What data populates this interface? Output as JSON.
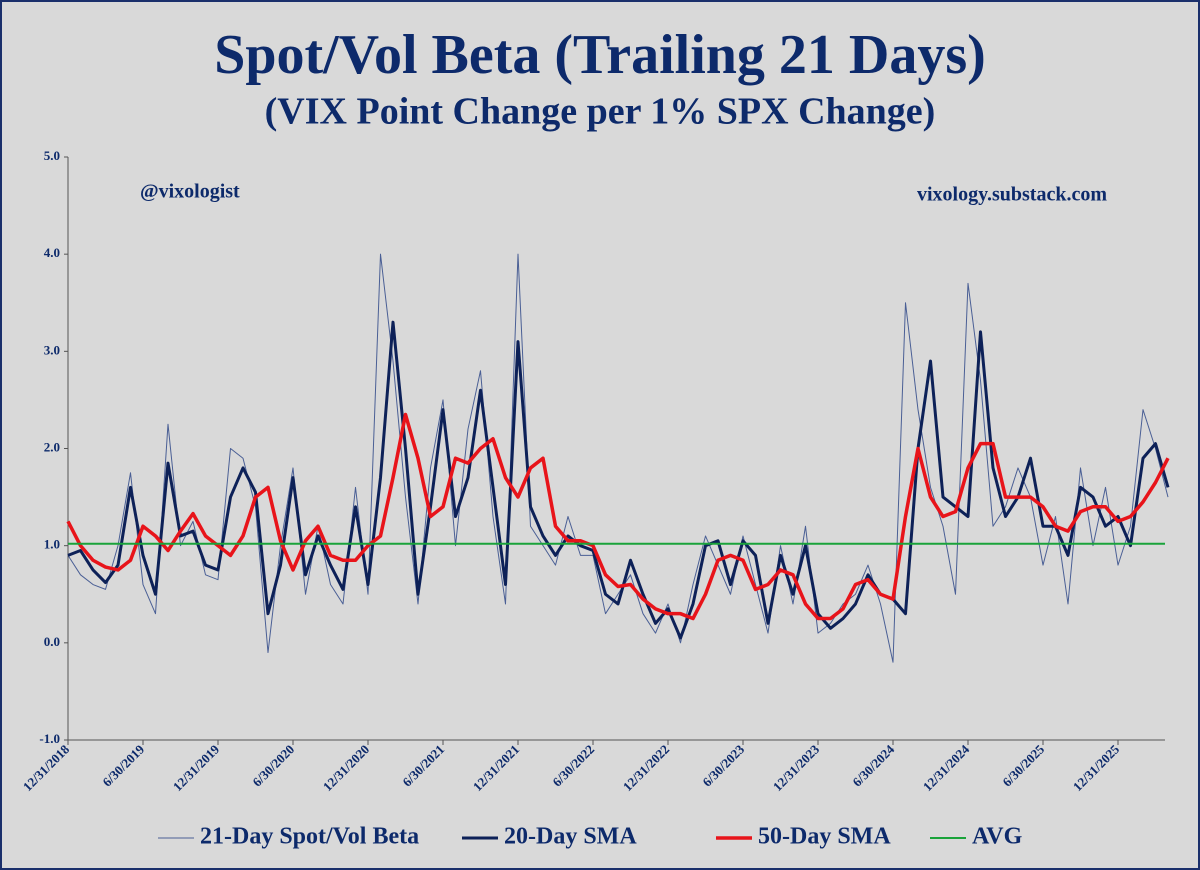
{
  "chart_data": {
    "type": "line",
    "title": "Spot/Vol Beta (Trailing 21 Days)",
    "subtitle": "(VIX Point Change per 1% SPX Change)",
    "annotations": [
      "@vixologist",
      "vixology.substack.com"
    ],
    "categories": [
      "12/31/2018",
      null,
      null,
      null,
      null,
      null,
      "6/30/2019",
      null,
      null,
      null,
      null,
      null,
      "12/31/2019",
      null,
      null,
      null,
      null,
      null,
      "6/30/2020",
      null,
      null,
      null,
      null,
      null,
      "12/31/2020",
      null,
      null,
      null,
      null,
      null,
      "6/30/2021",
      null,
      null,
      null,
      null,
      null,
      "12/31/2021",
      null,
      null,
      null,
      null,
      null,
      "6/30/2022",
      null,
      null,
      null,
      null,
      null,
      "12/31/2022",
      null,
      null,
      null,
      null,
      null,
      "6/30/2023",
      null,
      null,
      null,
      null,
      null,
      "12/31/2023",
      null,
      null,
      null,
      null,
      null,
      "6/30/2024",
      null,
      null,
      null,
      null,
      null,
      "12/31/2024",
      null,
      null,
      null,
      null,
      null,
      "6/30/2025",
      null,
      null,
      null,
      null,
      null,
      "12/31/2025",
      null,
      null,
      null,
      null
    ],
    "series": [
      {
        "name": "21-Day Spot/Vol Beta",
        "color": "#4a5f95",
        "width": 1,
        "values": [
          0.9,
          0.7,
          0.6,
          0.55,
          1.0,
          1.75,
          0.6,
          0.3,
          2.25,
          1.0,
          1.25,
          0.7,
          0.65,
          2.0,
          1.9,
          1.4,
          -0.1,
          1.0,
          1.8,
          0.5,
          1.2,
          0.6,
          0.4,
          1.6,
          0.5,
          4.0,
          2.9,
          1.5,
          0.4,
          1.8,
          2.5,
          1.0,
          2.2,
          2.8,
          1.3,
          0.4,
          4.0,
          1.2,
          1.0,
          0.8,
          1.3,
          0.9,
          0.9,
          0.3,
          0.5,
          0.7,
          0.3,
          0.1,
          0.4,
          0.0,
          0.6,
          1.1,
          0.8,
          0.5,
          1.1,
          0.6,
          0.1,
          1.0,
          0.4,
          1.2,
          0.1,
          0.2,
          0.4,
          0.5,
          0.8,
          0.4,
          -0.2,
          3.5,
          2.4,
          1.6,
          1.2,
          0.5,
          3.7,
          2.7,
          1.2,
          1.4,
          1.8,
          1.5,
          0.8,
          1.3,
          0.4,
          1.8,
          1.0,
          1.6,
          0.8,
          1.2,
          2.4,
          2.0,
          1.5
        ]
      },
      {
        "name": "20-Day SMA",
        "color": "#0d2158",
        "width": 3,
        "values": [
          0.9,
          0.95,
          0.75,
          0.62,
          0.8,
          1.6,
          0.9,
          0.5,
          1.85,
          1.1,
          1.15,
          0.8,
          0.75,
          1.5,
          1.8,
          1.55,
          0.3,
          0.8,
          1.7,
          0.7,
          1.1,
          0.8,
          0.55,
          1.4,
          0.6,
          1.7,
          3.3,
          2.0,
          0.5,
          1.4,
          2.4,
          1.3,
          1.7,
          2.6,
          1.6,
          0.6,
          3.1,
          1.4,
          1.1,
          0.9,
          1.1,
          1.0,
          0.95,
          0.5,
          0.4,
          0.85,
          0.5,
          0.2,
          0.35,
          0.05,
          0.4,
          1.0,
          1.05,
          0.6,
          1.05,
          0.9,
          0.2,
          0.9,
          0.5,
          1.0,
          0.3,
          0.15,
          0.25,
          0.4,
          0.7,
          0.5,
          0.45,
          0.3,
          2.0,
          2.9,
          1.5,
          1.4,
          1.3,
          3.2,
          1.8,
          1.3,
          1.5,
          1.9,
          1.2,
          1.2,
          0.9,
          1.6,
          1.5,
          1.2,
          1.3,
          1.0,
          1.9,
          2.05,
          1.6
        ]
      },
      {
        "name": "50-Day SMA",
        "color": "#e8141a",
        "width": 3.5,
        "values": [
          1.25,
          1.0,
          0.85,
          0.78,
          0.75,
          0.85,
          1.2,
          1.1,
          0.95,
          1.15,
          1.33,
          1.1,
          1.0,
          0.9,
          1.1,
          1.5,
          1.6,
          1.05,
          0.75,
          1.05,
          1.2,
          0.9,
          0.85,
          0.85,
          1.0,
          1.1,
          1.7,
          2.35,
          1.9,
          1.3,
          1.4,
          1.9,
          1.85,
          2.0,
          2.1,
          1.7,
          1.5,
          1.8,
          1.9,
          1.2,
          1.05,
          1.05,
          1.0,
          0.7,
          0.58,
          0.6,
          0.45,
          0.35,
          0.3,
          0.3,
          0.25,
          0.5,
          0.85,
          0.9,
          0.85,
          0.55,
          0.6,
          0.75,
          0.7,
          0.4,
          0.25,
          0.25,
          0.35,
          0.6,
          0.65,
          0.5,
          0.45,
          1.3,
          2.0,
          1.5,
          1.3,
          1.35,
          1.8,
          2.05,
          2.05,
          1.5,
          1.5,
          1.5,
          1.4,
          1.2,
          1.15,
          1.35,
          1.4,
          1.4,
          1.25,
          1.3,
          1.45,
          1.65,
          1.9
        ]
      },
      {
        "name": "AVG",
        "color": "#1aa33a",
        "width": 2,
        "value": 1.02
      }
    ],
    "ylim": [
      -1,
      5
    ],
    "yticks": [
      {
        "value": -1,
        "label": "-1.0"
      },
      {
        "value": 0,
        "label": "0.0"
      },
      {
        "value": 1,
        "label": "1.0"
      },
      {
        "value": 2,
        "label": "2.0"
      },
      {
        "value": 3,
        "label": "3.0"
      },
      {
        "value": 4,
        "label": "4.0"
      },
      {
        "value": 5,
        "label": "5.0"
      }
    ],
    "grid": false
  }
}
